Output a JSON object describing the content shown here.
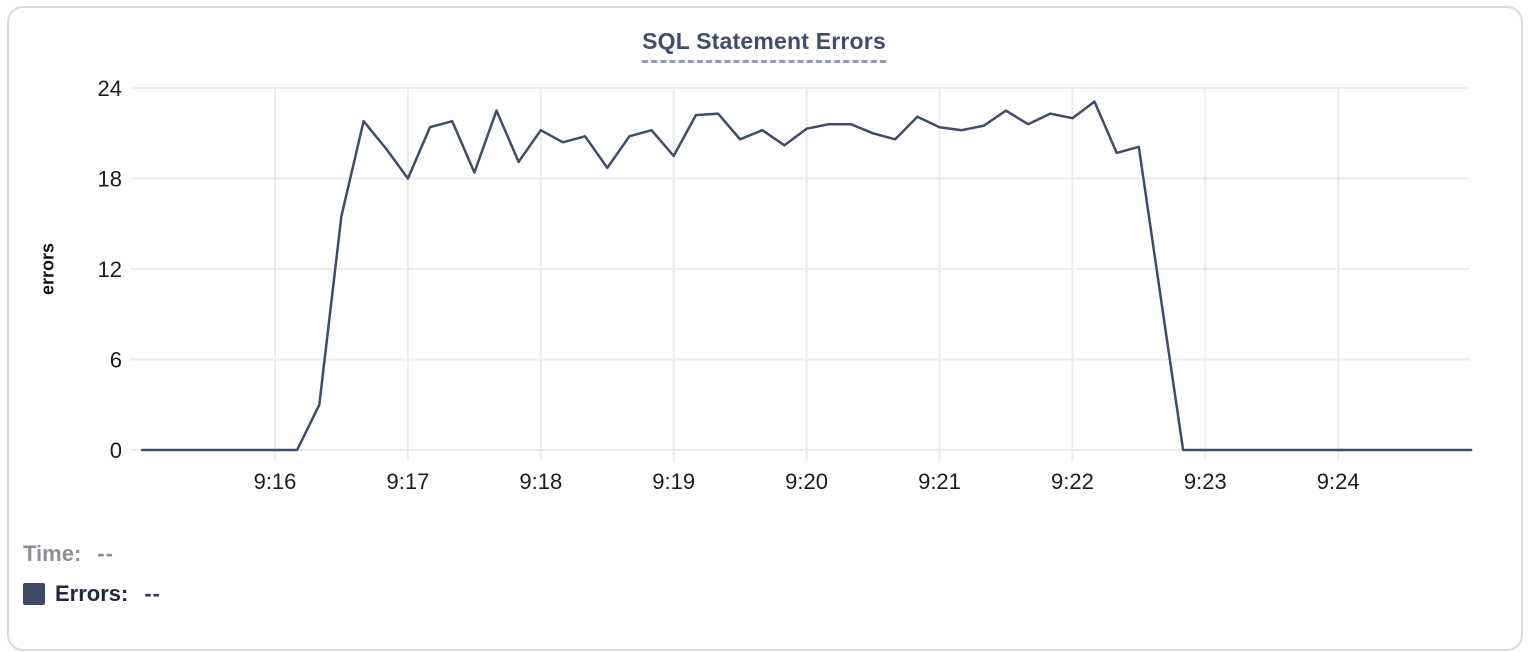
{
  "chart_data": {
    "type": "line",
    "title": "SQL Statement Errors",
    "xlabel": "",
    "ylabel": "errors",
    "ylim": [
      0,
      24
    ],
    "y_ticks": [
      0,
      6,
      12,
      18,
      24
    ],
    "x_ticks": [
      "9:16",
      "9:17",
      "9:18",
      "9:19",
      "9:20",
      "9:21",
      "9:22",
      "9:23",
      "9:24"
    ],
    "start_time": "9:15:00",
    "end_time": "9:25:00",
    "interval_seconds": 10,
    "grid": true,
    "legend_position": "bottom-left",
    "series": [
      {
        "name": "Errors",
        "color": "#3e4d6c",
        "values": [
          0,
          0,
          0,
          0,
          0,
          0,
          0,
          0,
          3,
          15.5,
          21.8,
          20,
          18,
          21.4,
          21.8,
          18.4,
          22.5,
          19.1,
          21.2,
          20.4,
          20.8,
          18.7,
          20.8,
          21.2,
          19.5,
          22.2,
          22.3,
          20.6,
          21.2,
          20.2,
          21.3,
          21.6,
          21.6,
          21.0,
          20.6,
          22.1,
          21.4,
          21.2,
          21.5,
          22.5,
          21.6,
          22.3,
          22.0,
          23.1,
          19.7,
          20.1,
          10,
          0,
          0,
          0,
          0,
          0,
          0,
          0,
          0,
          0,
          0,
          0,
          0,
          0,
          0
        ]
      }
    ]
  },
  "readout": {
    "time_label": "Time:",
    "time_value": "--",
    "errors_label": "Errors:",
    "errors_value": "--"
  },
  "colors": {
    "line": "#3e4d6c",
    "swatch": "#3d4b66",
    "title": "#3e4e6f",
    "title_underline": "#8e9cbd",
    "grid": "#ececec",
    "tick_text": "#1c1c1c",
    "time_text": "#8c9096",
    "errors_text": "#1e2a42",
    "errors_value_text": "#2e3b5c",
    "card_border": "#d9dadc"
  }
}
